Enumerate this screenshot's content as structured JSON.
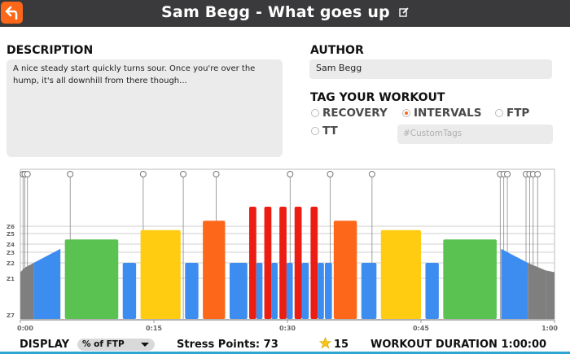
{
  "header": {
    "title": "Sam Begg - What goes up",
    "back_icon": "back-arrow-icon",
    "edit_icon": "edit-icon",
    "accent": "#fc6719",
    "bar_color": "#3a3a3c"
  },
  "description": {
    "label": "DESCRIPTION",
    "text": "A nice steady start quickly turns sour. Once you're over the hump, it's all downhill from there though..."
  },
  "author": {
    "label": "AUTHOR",
    "value": "Sam Begg"
  },
  "tags": {
    "label": "TAG YOUR WORKOUT",
    "options": [
      {
        "label": "RECOVERY",
        "selected": false
      },
      {
        "label": "INTERVALS",
        "selected": true
      },
      {
        "label": "FTP",
        "selected": false
      },
      {
        "label": "TT",
        "selected": false
      }
    ],
    "custom_placeholder": "#CustomTags"
  },
  "chart_data": {
    "type": "bar",
    "zones": [
      "Z6",
      "Z5",
      "Z4",
      "Z3",
      "Z2",
      "Z1",
      "Z7"
    ],
    "x_ticks": [
      "0:00",
      "0:15",
      "0:30",
      "0:45",
      "1:00"
    ],
    "x_range_minutes": [
      0,
      60
    ],
    "zone_colors": {
      "Z1": "#7f7f7f",
      "Z2": "#3d8df0",
      "Z3": "#59c250",
      "Z4": "#ffcc11",
      "Z5": "#fc6719",
      "Z6": "#ec1d12"
    },
    "segments": [
      {
        "type": "ramp",
        "zone": "Z1",
        "start": 0.0,
        "end": 0.5,
        "from": 0.5,
        "to": 0.55
      },
      {
        "type": "ramp",
        "zone": "Z1",
        "start": 0.5,
        "end": 1.5,
        "from": 0.55,
        "to": 0.6
      },
      {
        "type": "ramp",
        "zone": "Z2",
        "start": 1.5,
        "end": 4.5,
        "from": 0.6,
        "to": 0.75
      },
      {
        "type": "steady",
        "zone": "Z3",
        "start": 5.0,
        "end": 11.0,
        "power": 0.85
      },
      {
        "type": "steady",
        "zone": "Z2",
        "start": 11.5,
        "end": 13.0,
        "power": 0.6
      },
      {
        "type": "steady",
        "zone": "Z4",
        "start": 13.5,
        "end": 18.0,
        "power": 0.95
      },
      {
        "type": "steady",
        "zone": "Z2",
        "start": 18.5,
        "end": 20.0,
        "power": 0.6
      },
      {
        "type": "steady",
        "zone": "Z5",
        "start": 20.5,
        "end": 23.0,
        "power": 1.05
      },
      {
        "type": "steady",
        "zone": "Z2",
        "start": 23.5,
        "end": 25.5,
        "power": 0.6
      },
      {
        "type": "steady",
        "zone": "Z6",
        "start": 25.7,
        "end": 26.5,
        "power": 1.2
      },
      {
        "type": "steady",
        "zone": "Z2",
        "start": 26.5,
        "end": 27.2,
        "power": 0.6
      },
      {
        "type": "steady",
        "zone": "Z6",
        "start": 27.4,
        "end": 28.2,
        "power": 1.2
      },
      {
        "type": "steady",
        "zone": "Z2",
        "start": 28.2,
        "end": 28.9,
        "power": 0.6
      },
      {
        "type": "steady",
        "zone": "Z6",
        "start": 29.1,
        "end": 29.9,
        "power": 1.2
      },
      {
        "type": "steady",
        "zone": "Z2",
        "start": 29.9,
        "end": 30.6,
        "power": 0.6
      },
      {
        "type": "steady",
        "zone": "Z6",
        "start": 30.8,
        "end": 31.6,
        "power": 1.2
      },
      {
        "type": "steady",
        "zone": "Z2",
        "start": 31.6,
        "end": 32.4,
        "power": 0.6
      },
      {
        "type": "steady",
        "zone": "Z6",
        "start": 32.6,
        "end": 33.4,
        "power": 1.2
      },
      {
        "type": "steady",
        "zone": "Z2",
        "start": 33.4,
        "end": 34.1,
        "power": 0.6
      },
      {
        "type": "steady",
        "zone": "Z2",
        "start": 34.2,
        "end": 35.0,
        "power": 0.6
      },
      {
        "type": "steady",
        "zone": "Z5",
        "start": 35.2,
        "end": 37.8,
        "power": 1.05
      },
      {
        "type": "steady",
        "zone": "Z2",
        "start": 38.3,
        "end": 40.0,
        "power": 0.6
      },
      {
        "type": "steady",
        "zone": "Z4",
        "start": 40.5,
        "end": 45.0,
        "power": 0.95
      },
      {
        "type": "steady",
        "zone": "Z2",
        "start": 45.5,
        "end": 47.0,
        "power": 0.6
      },
      {
        "type": "steady",
        "zone": "Z3",
        "start": 47.5,
        "end": 53.5,
        "power": 0.85
      },
      {
        "type": "ramp",
        "zone": "Z2",
        "start": 54.0,
        "end": 57.0,
        "from": 0.75,
        "to": 0.6
      },
      {
        "type": "ramp",
        "zone": "Z1",
        "start": 57.0,
        "end": 59.0,
        "from": 0.6,
        "to": 0.52
      },
      {
        "type": "ramp",
        "zone": "Z1",
        "start": 59.0,
        "end": 60.0,
        "from": 0.52,
        "to": 0.5
      }
    ],
    "text_event_markers_minutes": [
      0.3,
      0.5,
      0.8,
      5.6,
      13.8,
      18.3,
      22.0,
      30.3,
      34.8,
      39.5,
      53.9,
      54.3,
      54.7,
      56.8,
      57.2,
      57.6,
      58.1
    ]
  },
  "footer": {
    "display_label": "DISPLAY",
    "display_value": "% of FTP",
    "stress_points": "Stress Points: 73",
    "star_icon": "star-icon",
    "star_value": "15",
    "duration": "WORKOUT DURATION 1:00:00",
    "strip_color": "#2fa6d2"
  }
}
